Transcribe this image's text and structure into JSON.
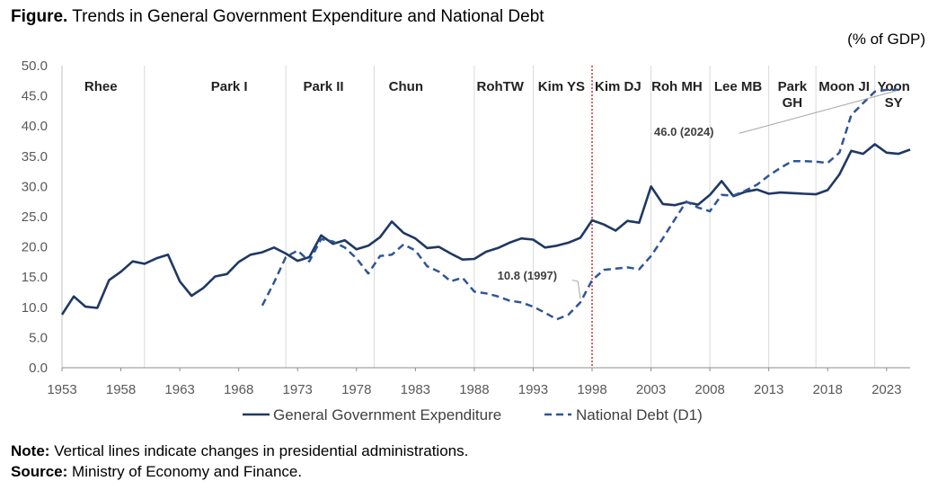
{
  "title": {
    "prefix": "Figure.",
    "text": "Trends in General Government Expenditure and National Debt"
  },
  "unit": "(% of GDP)",
  "note": {
    "label": "Note:",
    "text": "Vertical lines indicate changes in presidential administrations."
  },
  "source": {
    "label": "Source:",
    "text": "Ministry of Economy and Finance."
  },
  "colors": {
    "series": "#1f3864",
    "debt": "#2f5597",
    "divider": "#c00000",
    "grid": "#d9d9d9",
    "axis": "#595959"
  },
  "chart_data": {
    "type": "line",
    "title": "Trends in General Government Expenditure and National Debt",
    "ylabel": "(% of GDP)",
    "xlim": [
      1953,
      2025
    ],
    "ylim": [
      0,
      50
    ],
    "yticks": [
      "0.0",
      "5.0",
      "10.0",
      "15.0",
      "20.0",
      "25.0",
      "30.0",
      "35.0",
      "40.0",
      "45.0",
      "50.0"
    ],
    "xticks": [
      1953,
      1958,
      1963,
      1968,
      1973,
      1978,
      1983,
      1988,
      1993,
      1998,
      2003,
      2008,
      2013,
      2018,
      2023
    ],
    "grid": false,
    "legend": "bottom",
    "administrations": [
      {
        "name": "Rhee",
        "start": 1953,
        "end": 1960,
        "center": 1956.3
      },
      {
        "name": "Park I",
        "start": 1960,
        "end": 1972,
        "center": 1967.2
      },
      {
        "name": "Park II",
        "start": 1972,
        "end": 1979.5,
        "center": 1975.2
      },
      {
        "name": "Chun",
        "start": 1979.5,
        "end": 1988,
        "center": 1982.2
      },
      {
        "name": "RohTW",
        "start": 1988,
        "end": 1993,
        "center": 1990.2
      },
      {
        "name": "Kim YS",
        "start": 1993,
        "end": 1998,
        "center": 1995.4
      },
      {
        "name": "Kim DJ",
        "start": 1998,
        "end": 2003,
        "center": 2000.2
      },
      {
        "name": "Roh MH",
        "start": 2003,
        "end": 2008,
        "center": 2005.2
      },
      {
        "name": "Lee MB",
        "start": 2008,
        "end": 2013,
        "center": 2010.4
      },
      {
        "name": "Park\nGH",
        "start": 2013,
        "end": 2017,
        "center": 2015.0
      },
      {
        "name": "Moon JI",
        "start": 2017,
        "end": 2022,
        "center": 2019.4
      },
      {
        "name": "Yoon\nSY",
        "start": 2022,
        "end": 2025,
        "center": 2023.6
      }
    ],
    "series": [
      {
        "name": "General Government Expenditure",
        "style": "solid",
        "x": [
          1953,
          1954,
          1955,
          1956,
          1957,
          1958,
          1959,
          1960,
          1961,
          1962,
          1963,
          1964,
          1965,
          1966,
          1967,
          1968,
          1969,
          1970,
          1971,
          1972,
          1973,
          1974,
          1975,
          1976,
          1977,
          1978,
          1979,
          1980,
          1981,
          1982,
          1983,
          1984,
          1985,
          1986,
          1987,
          1988,
          1989,
          1990,
          1991,
          1992,
          1993,
          1994,
          1995,
          1996,
          1997,
          1998,
          1999,
          2000,
          2001,
          2002,
          2003,
          2004,
          2005,
          2006,
          2007,
          2008,
          2009,
          2010,
          2011,
          2012,
          2013,
          2014,
          2015,
          2016,
          2017,
          2018,
          2019,
          2020,
          2021,
          2022,
          2023,
          2024,
          2025
        ],
        "values": [
          8.8,
          11.8,
          10.1,
          9.9,
          14.5,
          15.9,
          17.6,
          17.2,
          18.1,
          18.7,
          14.3,
          11.9,
          13.2,
          15.1,
          15.5,
          17.5,
          18.7,
          19.1,
          19.9,
          18.9,
          17.7,
          18.3,
          21.9,
          20.5,
          21.1,
          19.6,
          20.2,
          21.6,
          24.2,
          22.3,
          21.4,
          19.8,
          20.0,
          18.9,
          17.9,
          18.0,
          19.2,
          19.8,
          20.7,
          21.4,
          21.2,
          19.9,
          20.2,
          20.7,
          21.5,
          24.4,
          23.7,
          22.7,
          24.3,
          24.0,
          30.0,
          27.1,
          26.9,
          27.4,
          27.0,
          28.6,
          30.9,
          28.4,
          29.1,
          29.5,
          28.8,
          29.0,
          28.9,
          28.8,
          28.7,
          29.4,
          32.0,
          35.9,
          35.4,
          37.0,
          35.6,
          35.4,
          36.1
        ]
      },
      {
        "name": "National Debt (D1)",
        "style": "dashed",
        "x": [
          1970,
          1971,
          1972,
          1973,
          1974,
          1975,
          1976,
          1977,
          1978,
          1979,
          1980,
          1981,
          1982,
          1983,
          1984,
          1985,
          1986,
          1987,
          1988,
          1989,
          1990,
          1991,
          1992,
          1993,
          1994,
          1995,
          1996,
          1997,
          1998,
          1999,
          2000,
          2001,
          2002,
          2003,
          2004,
          2005,
          2006,
          2007,
          2008,
          2009,
          2010,
          2011,
          2012,
          2013,
          2014,
          2015,
          2016,
          2017,
          2018,
          2019,
          2020,
          2021,
          2022,
          2023,
          2024
        ],
        "values": [
          10.3,
          14.1,
          18.3,
          19.4,
          17.6,
          21.3,
          20.9,
          19.9,
          18.1,
          15.6,
          18.5,
          18.7,
          20.4,
          19.4,
          16.8,
          15.9,
          14.3,
          14.9,
          12.6,
          12.3,
          11.8,
          11.1,
          10.8,
          10.1,
          9.1,
          8.0,
          8.8,
          10.8,
          14.5,
          16.2,
          16.4,
          16.6,
          16.3,
          18.5,
          21.4,
          24.5,
          27.5,
          26.5,
          25.9,
          28.6,
          28.5,
          29.3,
          30.3,
          31.8,
          33.1,
          34.2,
          34.2,
          34.1,
          33.9,
          35.6,
          41.8,
          43.8,
          45.7,
          46.0,
          46.0
        ]
      }
    ],
    "annotations": [
      {
        "text": "10.8 (1997)",
        "x": 1997,
        "y": 10.8
      },
      {
        "text": "46.0 (2024)",
        "x": 2024,
        "y": 46.0
      }
    ]
  }
}
